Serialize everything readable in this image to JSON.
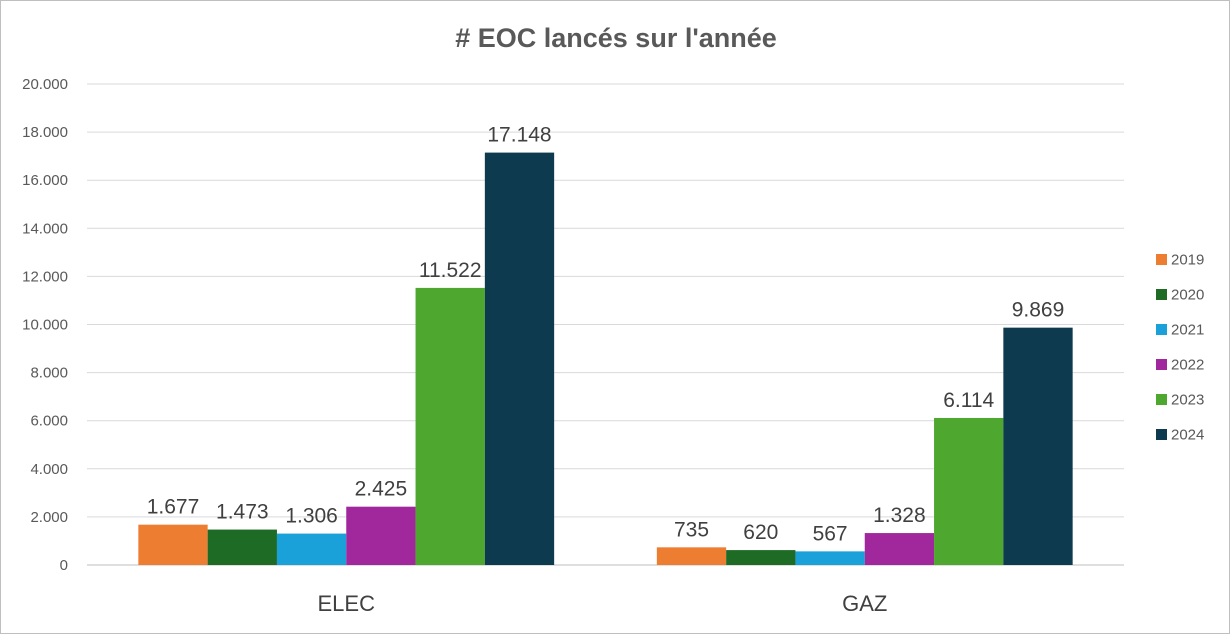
{
  "chart_data": {
    "type": "bar",
    "title": "# EOC lancés sur l'année",
    "xlabel": "",
    "ylabel": "",
    "categories": [
      "ELEC",
      "GAZ"
    ],
    "ylim": [
      0,
      20000
    ],
    "yticks": [
      {
        "value": 0,
        "label": "0"
      },
      {
        "value": 2000,
        "label": "2.000"
      },
      {
        "value": 4000,
        "label": "4.000"
      },
      {
        "value": 6000,
        "label": "6.000"
      },
      {
        "value": 8000,
        "label": "8.000"
      },
      {
        "value": 10000,
        "label": "10.000"
      },
      {
        "value": 12000,
        "label": "12.000"
      },
      {
        "value": 14000,
        "label": "14.000"
      },
      {
        "value": 16000,
        "label": "16.000"
      },
      {
        "value": 18000,
        "label": "18.000"
      },
      {
        "value": 20000,
        "label": "20.000"
      }
    ],
    "grid": true,
    "legend_position": "right",
    "series": [
      {
        "name": "2019",
        "color": "#ED7D31",
        "values": [
          1677,
          735
        ],
        "labels": [
          "1.677",
          "735"
        ]
      },
      {
        "name": "2020",
        "color": "#1E6B26",
        "values": [
          1473,
          620
        ],
        "labels": [
          "1.473",
          "620"
        ]
      },
      {
        "name": "2021",
        "color": "#1BA1D9",
        "values": [
          1306,
          567
        ],
        "labels": [
          "1.306",
          "567"
        ]
      },
      {
        "name": "2022",
        "color": "#A1279C",
        "values": [
          2425,
          1328
        ],
        "labels": [
          "2.425",
          "1.328"
        ]
      },
      {
        "name": "2023",
        "color": "#4EA72E",
        "values": [
          11522,
          6114
        ],
        "labels": [
          "11.522",
          "6.114"
        ]
      },
      {
        "name": "2024",
        "color": "#0E3A4F",
        "values": [
          17148,
          9869
        ],
        "labels": [
          "17.148",
          "9.869"
        ]
      }
    ]
  }
}
